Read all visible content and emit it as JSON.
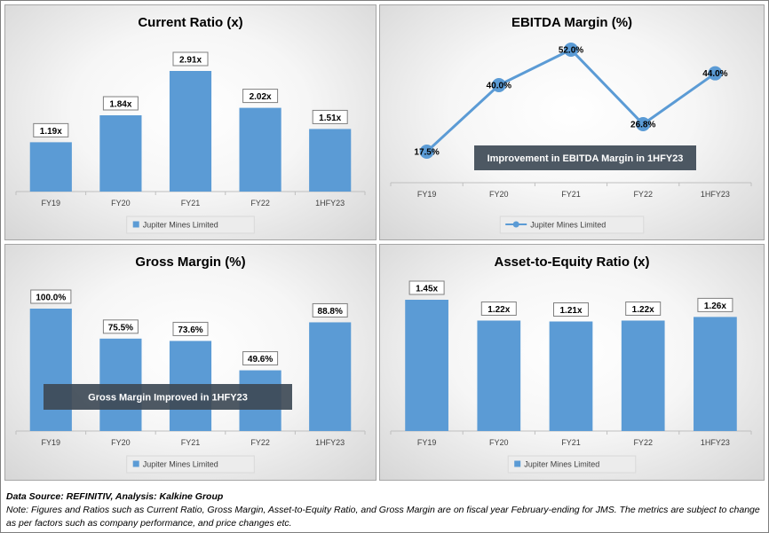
{
  "chart_data": [
    {
      "type": "bar",
      "title": "Current Ratio (x)",
      "categories": [
        "FY19",
        "FY20",
        "FY21",
        "FY22",
        "1HFY23"
      ],
      "series": [
        {
          "name": "Jupiter Mines Limited",
          "values": [
            1.19,
            1.84,
            2.91,
            2.02,
            1.51
          ]
        }
      ],
      "data_labels": [
        "1.19x",
        "1.84x",
        "2.91x",
        "2.02x",
        "1.51x"
      ],
      "legend": "bottom",
      "color": "#5b9bd5"
    },
    {
      "type": "line",
      "title": "EBITDA Margin (%)",
      "categories": [
        "FY19",
        "FY20",
        "FY21",
        "FY22",
        "1HFY23"
      ],
      "series": [
        {
          "name": "Jupiter Mines Limited",
          "values": [
            17.5,
            40.0,
            52.0,
            26.8,
            44.0
          ]
        }
      ],
      "data_labels": [
        "17.5%",
        "40.0%",
        "52.0%",
        "26.8%",
        "44.0%"
      ],
      "annotation": "Improvement in EBITDA Margin in 1HFY23",
      "legend": "bottom",
      "color": "#5b9bd5"
    },
    {
      "type": "bar",
      "title": "Gross Margin (%)",
      "categories": [
        "FY19",
        "FY20",
        "FY21",
        "FY22",
        "1HFY23"
      ],
      "series": [
        {
          "name": "Jupiter Mines Limited",
          "values": [
            100.0,
            75.5,
            73.6,
            49.6,
            88.8
          ]
        }
      ],
      "data_labels": [
        "100.0%",
        "75.5%",
        "73.6%",
        "49.6%",
        "88.8%"
      ],
      "annotation": "Gross Margin Improved in 1HFY23",
      "legend": "bottom",
      "color": "#5b9bd5"
    },
    {
      "type": "bar",
      "title": "Asset-to-Equity Ratio (x)",
      "categories": [
        "FY19",
        "FY20",
        "FY21",
        "FY22",
        "1HFY23"
      ],
      "series": [
        {
          "name": "Jupiter Mines Limited",
          "values": [
            1.45,
            1.22,
            1.21,
            1.22,
            1.26
          ]
        }
      ],
      "data_labels": [
        "1.45x",
        "1.22x",
        "1.21x",
        "1.22x",
        "1.26x"
      ],
      "legend": "bottom",
      "color": "#5b9bd5"
    }
  ],
  "footer": {
    "source": "Data Source: REFINITIV, Analysis: Kalkine Group",
    "note": "Note: Figures and Ratios such as Current Ratio, Gross Margin, Asset-to-Equity Ratio, and Gross Margin are on fiscal year February-ending for JMS. The metrics are subject to change as per factors such as company performance, and price changes etc."
  }
}
